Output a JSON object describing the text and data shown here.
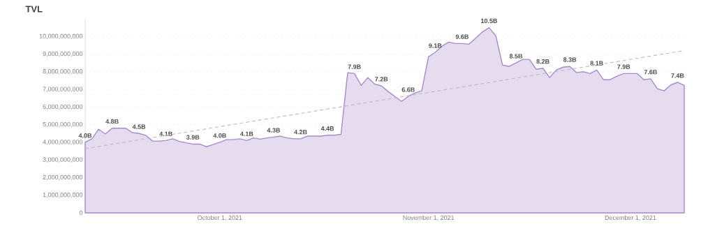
{
  "chart_data": {
    "type": "area",
    "title": "TVL",
    "x": [
      "2021-09-11",
      "2021-09-12",
      "2021-09-13",
      "2021-09-14",
      "2021-09-15",
      "2021-09-16",
      "2021-09-17",
      "2021-09-18",
      "2021-09-19",
      "2021-09-20",
      "2021-09-21",
      "2021-09-22",
      "2021-09-23",
      "2021-09-24",
      "2021-09-25",
      "2021-09-26",
      "2021-09-27",
      "2021-09-28",
      "2021-09-29",
      "2021-09-30",
      "2021-10-01",
      "2021-10-02",
      "2021-10-03",
      "2021-10-04",
      "2021-10-05",
      "2021-10-06",
      "2021-10-07",
      "2021-10-08",
      "2021-10-09",
      "2021-10-10",
      "2021-10-11",
      "2021-10-12",
      "2021-10-13",
      "2021-10-14",
      "2021-10-15",
      "2021-10-16",
      "2021-10-17",
      "2021-10-18",
      "2021-10-19",
      "2021-10-20",
      "2021-10-21",
      "2021-10-22",
      "2021-10-23",
      "2021-10-24",
      "2021-10-25",
      "2021-10-26",
      "2021-10-27",
      "2021-10-28",
      "2021-10-29",
      "2021-10-30",
      "2021-10-31",
      "2021-11-01",
      "2021-11-02",
      "2021-11-03",
      "2021-11-04",
      "2021-11-05",
      "2021-11-06",
      "2021-11-07",
      "2021-11-08",
      "2021-11-09",
      "2021-11-10",
      "2021-11-11",
      "2021-11-12",
      "2021-11-13",
      "2021-11-14",
      "2021-11-15",
      "2021-11-16",
      "2021-11-17",
      "2021-11-18",
      "2021-11-19",
      "2021-11-20",
      "2021-11-21",
      "2021-11-22",
      "2021-11-23",
      "2021-11-24",
      "2021-11-25",
      "2021-11-26",
      "2021-11-27",
      "2021-11-28",
      "2021-11-29",
      "2021-11-30",
      "2021-12-01",
      "2021-12-02",
      "2021-12-03",
      "2021-12-04",
      "2021-12-05",
      "2021-12-06",
      "2021-12-07",
      "2021-12-08",
      "2021-12-09"
    ],
    "series": [
      {
        "color": "#a78bc9",
        "values": [
          4000000000,
          4200000000,
          4740000000,
          4470000000,
          4800000000,
          4800000000,
          4800000000,
          4550000000,
          4500000000,
          4400000000,
          4070000000,
          4070000000,
          4100000000,
          4200000000,
          4050000000,
          3970000000,
          3900000000,
          3900000000,
          3750000000,
          3870000000,
          4000000000,
          4150000000,
          4150000000,
          4200000000,
          4100000000,
          4250000000,
          4180000000,
          4250000000,
          4300000000,
          4350000000,
          4250000000,
          4200000000,
          4200000000,
          4350000000,
          4350000000,
          4350000000,
          4400000000,
          4400000000,
          4450000000,
          7950000000,
          7900000000,
          7230000000,
          7670000000,
          7300000000,
          7200000000,
          6880000000,
          6600000000,
          6320000000,
          6600000000,
          6800000000,
          6920000000,
          8850000000,
          9100000000,
          9450000000,
          9680000000,
          9600000000,
          9600000000,
          9560000000,
          9900000000,
          10250000000,
          10500000000,
          10040000000,
          8380000000,
          8300000000,
          8500000000,
          8700000000,
          8700000000,
          8140000000,
          8200000000,
          7670000000,
          8100000000,
          8260000000,
          8300000000,
          7950000000,
          8000000000,
          7900000000,
          8100000000,
          7550000000,
          7550000000,
          7750000000,
          7900000000,
          7900000000,
          7900000000,
          7550000000,
          7600000000,
          7040000000,
          6920000000,
          7250000000,
          7400000000,
          7230000000
        ],
        "value_labels": [
          "4.0B",
          null,
          null,
          null,
          "4.8B",
          null,
          null,
          null,
          "4.5B",
          null,
          null,
          null,
          "4.1B",
          null,
          null,
          null,
          "3.9B",
          null,
          null,
          null,
          "4.0B",
          null,
          null,
          null,
          "4.1B",
          null,
          null,
          null,
          "4.3B",
          null,
          null,
          null,
          "4.2B",
          null,
          null,
          null,
          "4.4B",
          null,
          null,
          null,
          "7.9B",
          null,
          null,
          null,
          "7.2B",
          null,
          null,
          null,
          "6.6B",
          null,
          null,
          null,
          "9.1B",
          null,
          null,
          null,
          "9.6B",
          null,
          null,
          null,
          "10.5B",
          null,
          null,
          null,
          "8.5B",
          null,
          null,
          null,
          "8.2B",
          null,
          null,
          null,
          "8.3B",
          null,
          null,
          null,
          "8.1B",
          null,
          null,
          null,
          "7.9B",
          null,
          null,
          null,
          "7.6B",
          null,
          null,
          null,
          "7.4B",
          null
        ]
      },
      {
        "type": "line",
        "color": "#c4b8d4",
        "line_style": "dashed",
        "x": [
          "2021-09-11",
          "2021-12-09"
        ],
        "values": [
          3640000000,
          9200000000
        ]
      }
    ],
    "xlim": [
      "2021-09-11",
      "2021-12-09"
    ],
    "xticks": [
      {
        "value": "2021-10-01",
        "label": "October 1, 2021"
      },
      {
        "value": "2021-11-01",
        "label": "November 1, 2021"
      },
      {
        "value": "2021-12-01",
        "label": "December 1, 2021"
      }
    ],
    "ylim": [
      0,
      11000000000
    ],
    "yticks": [
      0,
      {
        "value": 1000000000,
        "label": "1,000,000,000"
      },
      {
        "value": 2000000000,
        "label": "2,000,000,000"
      },
      {
        "value": 3000000000,
        "label": "3,000,000,000"
      },
      {
        "value": 4000000000,
        "label": "4,000,000,000"
      },
      {
        "value": 5000000000,
        "label": "5,000,000,000"
      },
      {
        "value": 6000000000,
        "label": "6,000,000,000"
      },
      {
        "value": 7000000000,
        "label": "7,000,000,000"
      },
      {
        "value": 8000000000,
        "label": "8,000,000,000"
      },
      {
        "value": 9000000000,
        "label": "9,000,000,000"
      },
      {
        "value": 10000000000,
        "label": "10,000,000,000"
      }
    ],
    "grid": "y",
    "marker": "none"
  }
}
